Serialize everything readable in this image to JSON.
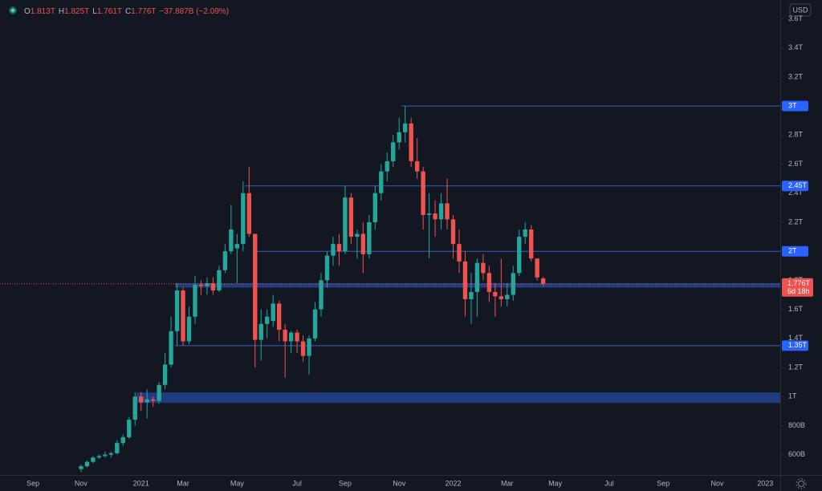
{
  "chart_data": {
    "type": "candlestick",
    "currency": "USD",
    "ohlc_header": [
      {
        "key": "O",
        "value": "1.813T"
      },
      {
        "key": "H",
        "value": "1.825T"
      },
      {
        "key": "L",
        "value": "1.761T"
      },
      {
        "key": "C",
        "value": "1.776T"
      }
    ],
    "change": "−37.887B (−2.09%)",
    "categories": [
      null,
      null,
      null,
      null,
      null,
      "Sep",
      null,
      null,
      null,
      null,
      null,
      null,
      null,
      "Nov",
      null,
      null,
      null,
      null,
      null,
      null,
      null,
      null,
      null,
      "2021",
      null,
      null,
      null,
      null,
      null,
      null,
      "Mar",
      null,
      null,
      null,
      null,
      null,
      null,
      null,
      null,
      "May",
      null,
      null,
      null,
      null,
      null,
      null,
      null,
      null,
      null,
      "Jul",
      null,
      null,
      null,
      null,
      null,
      null,
      null,
      "Sep",
      null,
      null,
      null,
      null,
      null,
      null,
      null,
      null,
      "Nov",
      null,
      null,
      null,
      null,
      null,
      null,
      null,
      null,
      "2022",
      null,
      null,
      null,
      null,
      null,
      null,
      null,
      null,
      "Mar",
      null,
      null,
      null,
      null,
      null,
      null,
      null,
      "May",
      null,
      null,
      null,
      null,
      null,
      null,
      null,
      null,
      "Jul",
      null,
      null,
      null,
      null,
      null,
      null,
      null,
      null,
      "Sep",
      null,
      null,
      null,
      null,
      null,
      null,
      null,
      null,
      "Nov",
      null,
      null,
      null,
      null,
      null,
      null,
      null,
      "2023",
      null,
      null
    ],
    "open": [
      null,
      null,
      null,
      null,
      null,
      null,
      null,
      null,
      null,
      null,
      null,
      null,
      null,
      0.5,
      0.52,
      0.55,
      0.58,
      0.59,
      0.6,
      0.61,
      0.68,
      0.72,
      0.84,
      1.0,
      0.96,
      0.98,
      0.97,
      1.08,
      1.22,
      1.45,
      1.73,
      1.38,
      1.55,
      1.77,
      1.76,
      1.78,
      1.73,
      1.87,
      2.0,
      2.02,
      2.05,
      2.4,
      2.12,
      1.39,
      1.5,
      1.52,
      1.64,
      1.46,
      1.38,
      1.44,
      1.38,
      1.28,
      1.4,
      1.6,
      1.8,
      1.97,
      2.05,
      2.0,
      2.37,
      2.1,
      2.12,
      1.98,
      2.2,
      2.4,
      2.55,
      2.62,
      2.75,
      2.82,
      2.88,
      2.62,
      2.55,
      2.25,
      2.26,
      2.22,
      2.33,
      2.22,
      2.05,
      1.93,
      1.67,
      1.72,
      1.92,
      1.85,
      1.72,
      1.69,
      1.67,
      1.7,
      1.85,
      2.1,
      2.15,
      1.95,
      1.813,
      null,
      null,
      null,
      null,
      null,
      null,
      null,
      null,
      null,
      null,
      null,
      null,
      null,
      null,
      null,
      null,
      null,
      null,
      null,
      null,
      null,
      null,
      null,
      null,
      null,
      null,
      null,
      null,
      null,
      null,
      null,
      null,
      null,
      null,
      null,
      null,
      null,
      null,
      null
    ],
    "high": [
      null,
      null,
      null,
      null,
      null,
      null,
      null,
      null,
      null,
      null,
      null,
      null,
      null,
      0.53,
      0.56,
      0.59,
      0.6,
      0.62,
      0.62,
      0.7,
      0.74,
      0.86,
      1.03,
      1.03,
      1.05,
      1.0,
      1.1,
      1.3,
      1.55,
      1.78,
      1.75,
      1.62,
      1.83,
      1.8,
      1.82,
      1.82,
      1.9,
      2.05,
      2.32,
      2.12,
      2.48,
      2.58,
      2.12,
      1.6,
      1.6,
      1.7,
      1.66,
      1.5,
      1.45,
      1.46,
      1.42,
      1.42,
      1.65,
      1.85,
      2.0,
      2.1,
      2.12,
      2.45,
      2.4,
      2.15,
      2.2,
      2.25,
      2.45,
      2.6,
      2.68,
      2.8,
      2.92,
      3.0,
      2.92,
      2.78,
      2.58,
      2.4,
      2.35,
      2.4,
      2.5,
      2.25,
      2.15,
      2.0,
      1.85,
      1.95,
      1.98,
      1.9,
      1.78,
      1.95,
      1.78,
      1.9,
      2.15,
      2.2,
      2.18,
      1.95,
      1.825,
      null,
      null,
      null,
      null,
      null,
      null,
      null,
      null,
      null,
      null,
      null,
      null,
      null,
      null,
      null,
      null,
      null,
      null,
      null,
      null,
      null,
      null,
      null,
      null,
      null,
      null,
      null,
      null,
      null,
      null,
      null,
      null,
      null,
      null,
      null,
      null,
      null,
      null,
      null
    ],
    "low": [
      null,
      null,
      null,
      null,
      null,
      null,
      null,
      null,
      null,
      null,
      null,
      null,
      null,
      0.48,
      0.51,
      0.54,
      0.57,
      0.58,
      0.58,
      0.6,
      0.66,
      0.71,
      0.8,
      0.9,
      0.85,
      0.93,
      0.95,
      1.05,
      1.2,
      1.35,
      1.35,
      1.36,
      1.5,
      1.7,
      1.7,
      1.7,
      1.72,
      1.85,
      1.98,
      1.78,
      2.0,
      2.1,
      1.2,
      1.25,
      1.4,
      1.48,
      1.38,
      1.13,
      1.3,
      1.3,
      1.24,
      1.15,
      1.38,
      1.55,
      1.75,
      1.9,
      1.9,
      1.98,
      2.05,
      1.95,
      1.85,
      1.95,
      2.15,
      2.35,
      2.48,
      2.58,
      2.7,
      2.75,
      2.58,
      2.5,
      2.15,
      1.95,
      2.1,
      2.15,
      2.15,
      1.95,
      1.85,
      1.55,
      1.5,
      1.55,
      1.8,
      1.65,
      1.55,
      1.62,
      1.62,
      1.66,
      1.83,
      2.05,
      1.93,
      1.8,
      1.761,
      null,
      null,
      null,
      null,
      null,
      null,
      null,
      null,
      null,
      null,
      null,
      null,
      null,
      null,
      null,
      null,
      null,
      null,
      null,
      null,
      null,
      null,
      null,
      null,
      null,
      null,
      null,
      null,
      null,
      null,
      null,
      null,
      null,
      null,
      null,
      null,
      null,
      null,
      null
    ],
    "close": [
      null,
      null,
      null,
      null,
      null,
      null,
      null,
      null,
      null,
      null,
      null,
      null,
      null,
      0.52,
      0.55,
      0.58,
      0.59,
      0.6,
      0.61,
      0.68,
      0.72,
      0.84,
      1.0,
      0.96,
      0.98,
      0.97,
      1.08,
      1.22,
      1.45,
      1.73,
      1.38,
      1.55,
      1.77,
      1.76,
      1.78,
      1.73,
      1.87,
      2.0,
      2.15,
      2.05,
      2.4,
      2.12,
      1.39,
      1.5,
      1.55,
      1.64,
      1.46,
      1.38,
      1.44,
      1.38,
      1.28,
      1.4,
      1.6,
      1.8,
      1.97,
      2.05,
      2.0,
      2.37,
      2.1,
      2.12,
      1.98,
      2.2,
      2.4,
      2.55,
      2.62,
      2.75,
      2.82,
      2.88,
      2.62,
      2.55,
      2.25,
      2.26,
      2.22,
      2.33,
      2.22,
      2.05,
      1.93,
      1.67,
      1.72,
      1.92,
      1.85,
      1.72,
      1.69,
      1.67,
      1.7,
      1.85,
      2.1,
      2.15,
      1.95,
      1.82,
      1.776,
      null,
      null,
      null,
      null,
      null,
      null,
      null,
      null,
      null,
      null,
      null,
      null,
      null,
      null,
      null,
      null,
      null,
      null,
      null,
      null,
      null,
      null,
      null,
      null,
      null,
      null,
      null,
      null,
      null,
      null,
      null,
      null,
      null,
      null,
      null,
      null,
      null,
      null,
      null
    ],
    "up_color": "#26a69a",
    "down_color": "#ef5350",
    "ylim": [
      0.46,
      3.73
    ],
    "yticks": [
      {
        "value": 0.6,
        "label": "600B"
      },
      {
        "value": 0.8,
        "label": "800B"
      },
      {
        "value": 1.0,
        "label": "1T"
      },
      {
        "value": 1.2,
        "label": "1.2T"
      },
      {
        "value": 1.4,
        "label": "1.4T"
      },
      {
        "value": 1.6,
        "label": "1.6T"
      },
      {
        "value": 1.8,
        "label": "1.8T"
      },
      {
        "value": 2.0,
        "label": "2T"
      },
      {
        "value": 2.2,
        "label": "2.2T"
      },
      {
        "value": 2.4,
        "label": "2.4T"
      },
      {
        "value": 2.6,
        "label": "2.6T"
      },
      {
        "value": 2.8,
        "label": "2.8T"
      },
      {
        "value": 3.0,
        "label": "3T"
      },
      {
        "value": 3.2,
        "label": "3.2T"
      },
      {
        "value": 3.4,
        "label": "3.4T"
      },
      {
        "value": 3.6,
        "label": "3.6T"
      }
    ],
    "levels": [
      {
        "value": 3.0,
        "label": "3T"
      },
      {
        "value": 2.45,
        "label": "2.45T"
      },
      {
        "value": 2.0,
        "label": "2T"
      },
      {
        "value": 1.35,
        "label": "1.35T"
      }
    ],
    "zones": [
      {
        "low": 1.75,
        "high": 1.78
      },
      {
        "low": 0.956,
        "high": 1.028
      }
    ],
    "last_price": {
      "label": "1.776T",
      "countdown": "6d 18h"
    },
    "grid": false
  }
}
